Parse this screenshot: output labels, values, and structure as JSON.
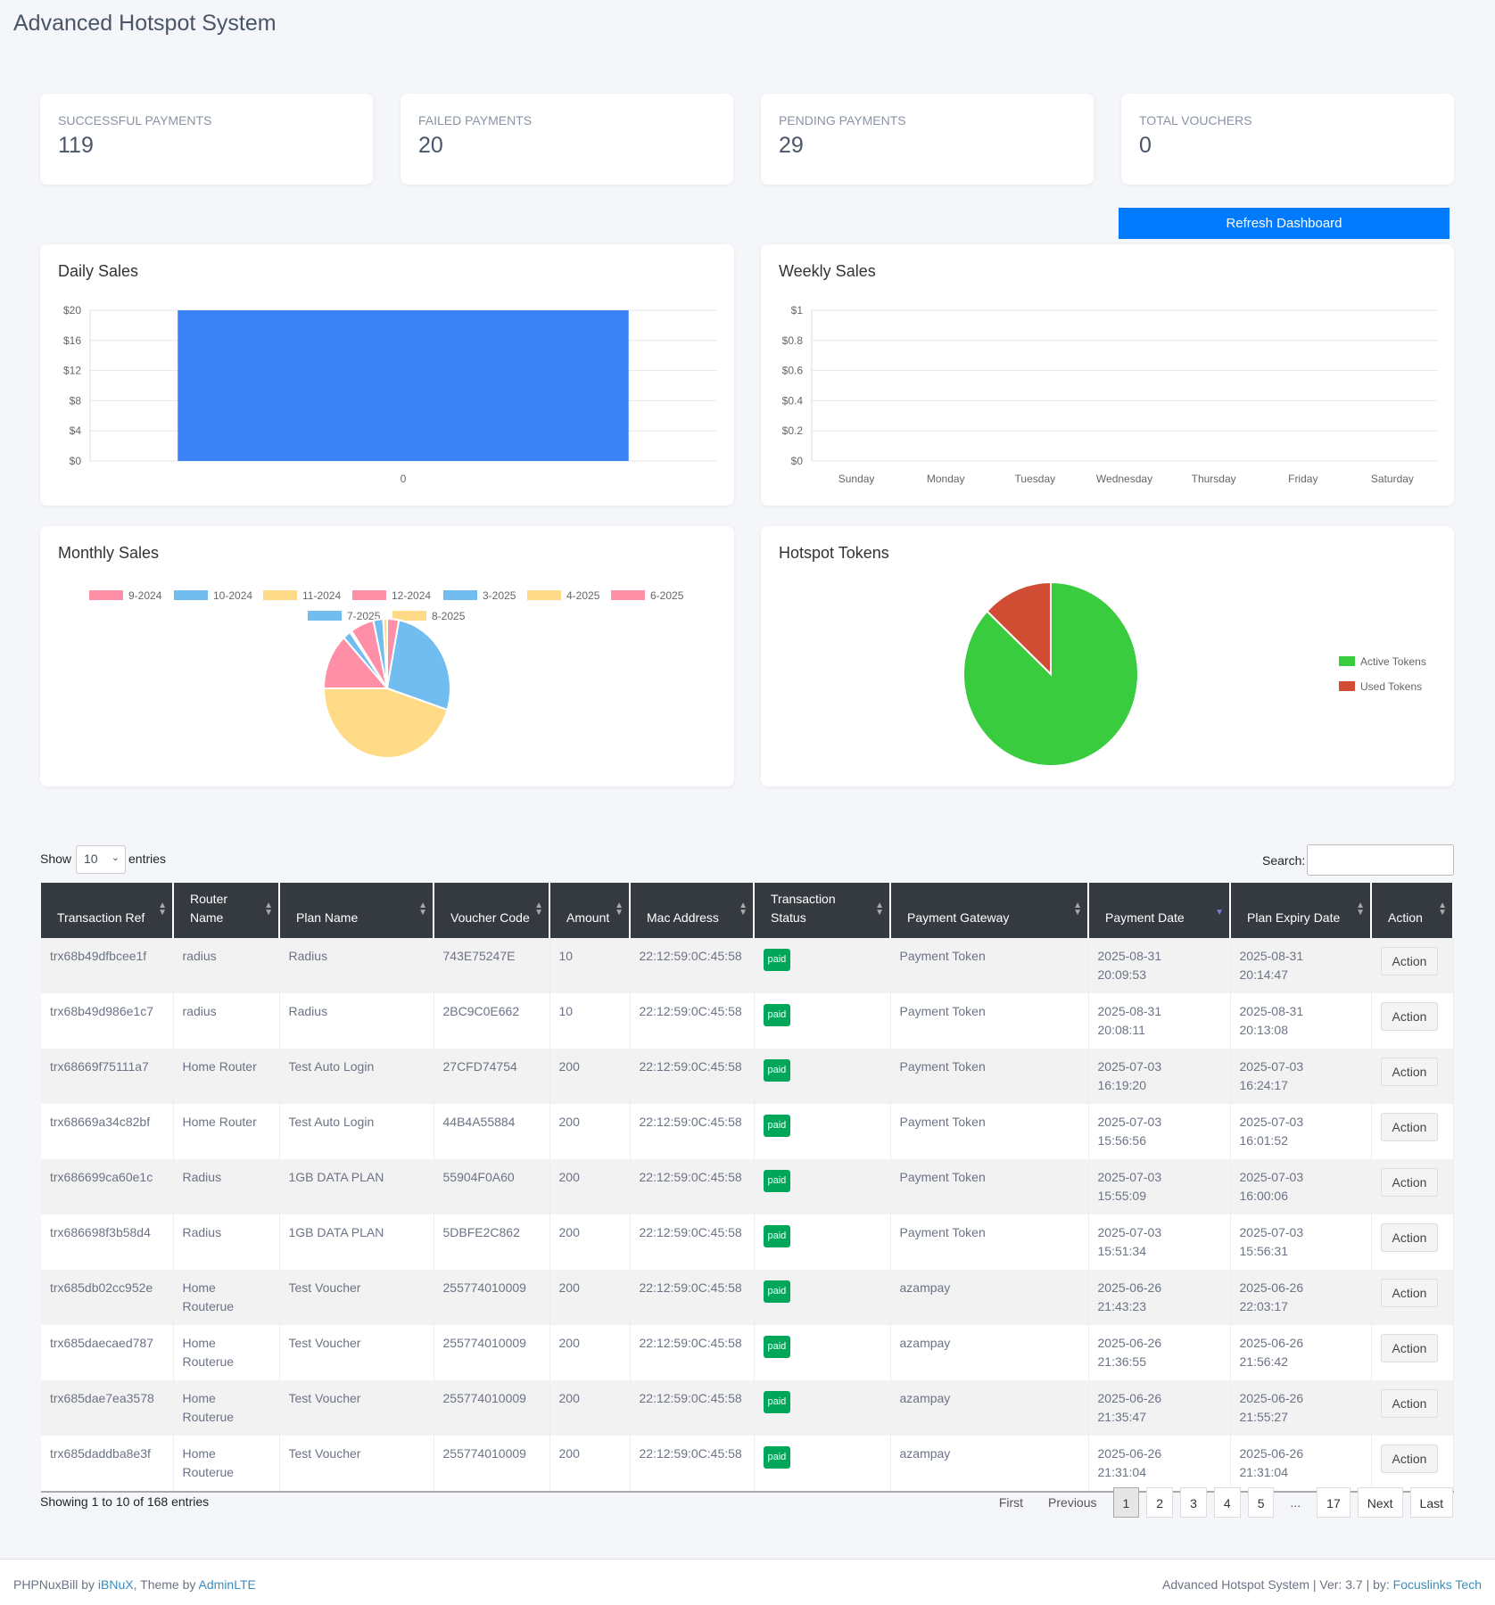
{
  "header": {
    "title": "Advanced Hotspot System"
  },
  "stats": [
    {
      "label": "Successful Payments",
      "value": "119"
    },
    {
      "label": "Failed Payments",
      "value": "20"
    },
    {
      "label": "Pending Payments",
      "value": "29"
    },
    {
      "label": "Total Vouchers",
      "value": "0"
    }
  ],
  "refresh_label": "Refresh Dashboard",
  "chart_data": [
    {
      "type": "bar",
      "title": "Daily Sales",
      "categories": [
        "0"
      ],
      "values": [
        20
      ],
      "yticks": [
        "$0",
        "$4",
        "$8",
        "$12",
        "$16",
        "$20"
      ],
      "ylim": [
        0,
        20
      ],
      "color": "#3b82f6",
      "grid": true
    },
    {
      "type": "line",
      "title": "Weekly Sales",
      "categories": [
        "Sunday",
        "Monday",
        "Tuesday",
        "Wednesday",
        "Thursday",
        "Friday",
        "Saturday"
      ],
      "values": [
        0,
        0,
        0,
        0,
        0,
        0,
        0
      ],
      "yticks": [
        "$0",
        "$0.2",
        "$0.4",
        "$0.6",
        "$0.8",
        "$1"
      ],
      "ylim": [
        0,
        1
      ],
      "grid": true
    },
    {
      "type": "pie",
      "title": "Monthly Sales",
      "legend": "top",
      "labels": [
        "9-2024",
        "10-2024",
        "11-2024",
        "12-2024",
        "3-2025",
        "4-2025",
        "6-2025",
        "7-2025",
        "8-2025"
      ],
      "values": [
        3,
        27,
        45,
        13,
        2,
        0.5,
        6,
        2.5,
        1
      ],
      "colors": [
        "#ff8fa6",
        "#72bdf0",
        "#ffdb87",
        "#ff8fa6",
        "#72bdf0",
        "#ffdb87",
        "#ff8fa6",
        "#72bdf0",
        "#ffdb87"
      ]
    },
    {
      "type": "pie",
      "title": "Hotspot Tokens",
      "legend": "right",
      "labels": [
        "Active Tokens",
        "Used Tokens"
      ],
      "values": [
        87,
        13
      ],
      "colors": [
        "#39cc3e",
        "#d04c33"
      ]
    }
  ],
  "table": {
    "show_label": "Show",
    "entries_label": "entries",
    "page_size": "10",
    "search_label": "Search:",
    "columns": [
      "Transaction Ref",
      "Router Name",
      "Plan Name",
      "Voucher Code",
      "Amount",
      "Mac Address",
      "Transaction Status",
      "Payment Gateway",
      "Payment Date",
      "Plan Expiry Date",
      "Action"
    ],
    "rows": [
      [
        "trx68b49dfbcee1f",
        "radius",
        "Radius",
        "743E75247E",
        "10",
        "22:12:59:0C:45:58",
        "paid",
        "Payment Token",
        "2025-08-31 20:09:53",
        "2025-08-31 20:14:47"
      ],
      [
        "trx68b49d986e1c7",
        "radius",
        "Radius",
        "2BC9C0E662",
        "10",
        "22:12:59:0C:45:58",
        "paid",
        "Payment Token",
        "2025-08-31 20:08:11",
        "2025-08-31 20:13:08"
      ],
      [
        "trx68669f75111a7",
        "Home Router",
        "Test Auto Login",
        "27CFD74754",
        "200",
        "22:12:59:0C:45:58",
        "paid",
        "Payment Token",
        "2025-07-03 16:19:20",
        "2025-07-03 16:24:17"
      ],
      [
        "trx68669a34c82bf",
        "Home Router",
        "Test Auto Login",
        "44B4A55884",
        "200",
        "22:12:59:0C:45:58",
        "paid",
        "Payment Token",
        "2025-07-03 15:56:56",
        "2025-07-03 16:01:52"
      ],
      [
        "trx686699ca60e1c",
        "Radius",
        "1GB DATA PLAN",
        "55904F0A60",
        "200",
        "22:12:59:0C:45:58",
        "paid",
        "Payment Token",
        "2025-07-03 15:55:09",
        "2025-07-03 16:00:06"
      ],
      [
        "trx686698f3b58d4",
        "Radius",
        "1GB DATA PLAN",
        "5DBFE2C862",
        "200",
        "22:12:59:0C:45:58",
        "paid",
        "Payment Token",
        "2025-07-03 15:51:34",
        "2025-07-03 15:56:31"
      ],
      [
        "trx685db02cc952e",
        "Home Routerue",
        "Test Voucher",
        "255774010009",
        "200",
        "22:12:59:0C:45:58",
        "paid",
        "azampay",
        "2025-06-26 21:43:23",
        "2025-06-26 22:03:17"
      ],
      [
        "trx685daecaed787",
        "Home Routerue",
        "Test Voucher",
        "255774010009",
        "200",
        "22:12:59:0C:45:58",
        "paid",
        "azampay",
        "2025-06-26 21:36:55",
        "2025-06-26 21:56:42"
      ],
      [
        "trx685dae7ea3578",
        "Home Routerue",
        "Test Voucher",
        "255774010009",
        "200",
        "22:12:59:0C:45:58",
        "paid",
        "azampay",
        "2025-06-26 21:35:47",
        "2025-06-26 21:55:27"
      ],
      [
        "trx685daddba8e3f",
        "Home Routerue",
        "Test Voucher",
        "255774010009",
        "200",
        "22:12:59:0C:45:58",
        "paid",
        "azampay",
        "2025-06-26 21:31:04",
        "2025-06-26 21:31:04"
      ]
    ],
    "action_label": "Action",
    "sorted_column": "Payment Date",
    "info": "Showing 1 to 10 of 168 entries",
    "pagination": {
      "first": "First",
      "previous": "Previous",
      "pages": [
        "1",
        "2",
        "3",
        "4",
        "5"
      ],
      "ellipsis": "...",
      "last_page": "17",
      "next": "Next",
      "last": "Last",
      "current": "1"
    }
  },
  "footer": {
    "left_prefix": "PHPNuxBill by ",
    "left_link1": "iBNuX",
    "left_mid": ", Theme by ",
    "left_link2": "AdminLTE",
    "right_prefix": "Advanced Hotspot System | Ver: 3.7 | by: ",
    "right_link": "Focuslinks Tech"
  }
}
